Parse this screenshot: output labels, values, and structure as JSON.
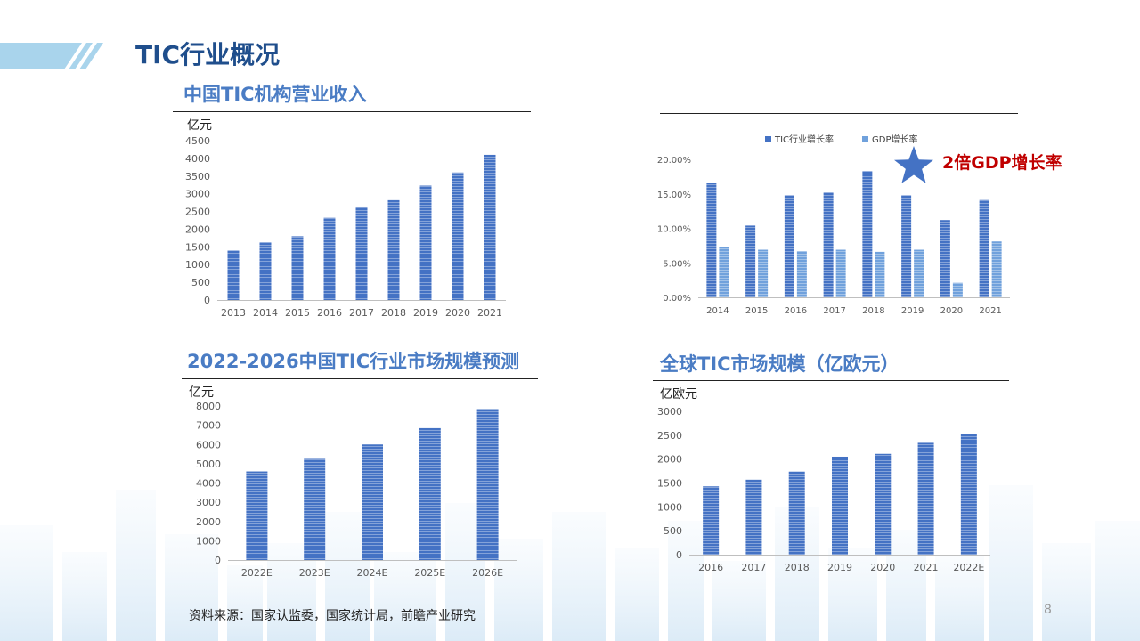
{
  "page": {
    "title": "TIC行业概况",
    "source": "资料来源：国家认监委，国家统计局，前瞻产业研究",
    "page_number": "8",
    "star_note": "2倍GDP增长率"
  },
  "colors": {
    "bar": "#4472c4",
    "bar_light": "#70a1dc",
    "title": "#1f4e8c",
    "subtitle": "#4a7cc4",
    "note": "#c00000"
  },
  "chart_data": [
    {
      "id": "revenue",
      "type": "bar",
      "title": "中国TIC机构营业收入",
      "unit": "亿元",
      "categories": [
        "2013",
        "2014",
        "2015",
        "2016",
        "2017",
        "2018",
        "2019",
        "2020",
        "2021"
      ],
      "values": [
        1400,
        1630,
        1800,
        2320,
        2640,
        2820,
        3230,
        3600,
        4100
      ],
      "ylim": [
        0,
        4500
      ],
      "yticks": [
        0,
        500,
        1000,
        1500,
        2000,
        2500,
        3000,
        3500,
        4000,
        4500
      ],
      "ytick_labels": [
        "0",
        "500",
        "1000",
        "1500",
        "2000",
        "2500",
        "3000",
        "3500",
        "4000",
        "4500"
      ]
    },
    {
      "id": "growth",
      "type": "bar",
      "title": "",
      "categories": [
        "2014",
        "2015",
        "2016",
        "2017",
        "2018",
        "2019",
        "2020",
        "2021"
      ],
      "series": [
        {
          "name": "TIC行业增长率",
          "values": [
            16.6,
            10.4,
            14.8,
            15.2,
            18.3,
            14.8,
            11.2,
            14.1
          ]
        },
        {
          "name": "GDP增长率",
          "values": [
            7.3,
            6.9,
            6.7,
            6.9,
            6.6,
            6.9,
            2.1,
            8.1
          ]
        }
      ],
      "ylim": [
        0,
        20
      ],
      "yticks": [
        0,
        5,
        10,
        15,
        20
      ],
      "ytick_labels": [
        "0.00%",
        "5.00%",
        "10.00%",
        "15.00%",
        "20.00%"
      ],
      "legend": "top"
    },
    {
      "id": "forecast",
      "type": "bar",
      "title": "2022-2026中国TIC行业市场规模预测",
      "unit": "亿元",
      "categories": [
        "2022E",
        "2023E",
        "2024E",
        "2025E",
        "2026E"
      ],
      "values": [
        4600,
        5250,
        6000,
        6850,
        7850
      ],
      "ylim": [
        0,
        8000
      ],
      "yticks": [
        0,
        1000,
        2000,
        3000,
        4000,
        5000,
        6000,
        7000,
        8000
      ],
      "ytick_labels": [
        "0",
        "1000",
        "2000",
        "3000",
        "4000",
        "5000",
        "6000",
        "7000",
        "8000"
      ]
    },
    {
      "id": "global",
      "type": "bar",
      "title": "全球TIC市场规模（亿欧元）",
      "unit": "亿欧元",
      "categories": [
        "2016",
        "2017",
        "2018",
        "2019",
        "2020",
        "2021",
        "2022E"
      ],
      "values": [
        1430,
        1570,
        1740,
        2050,
        2110,
        2340,
        2530
      ],
      "ylim": [
        0,
        3000
      ],
      "yticks": [
        0,
        500,
        1000,
        1500,
        2000,
        2500,
        3000
      ],
      "ytick_labels": [
        "0",
        "500",
        "1000",
        "1500",
        "2000",
        "2500",
        "3000"
      ]
    }
  ]
}
